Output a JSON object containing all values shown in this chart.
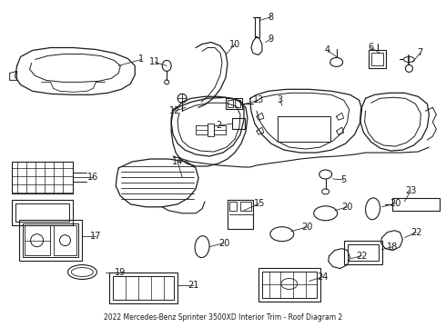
{
  "title": "2022 Mercedes-Benz Sprinter 3500XD Interior Trim - Roof Diagram 2",
  "bg_color": "#ffffff",
  "line_color": "#1a1a1a",
  "figsize": [
    4.9,
    3.6
  ],
  "dpi": 100
}
